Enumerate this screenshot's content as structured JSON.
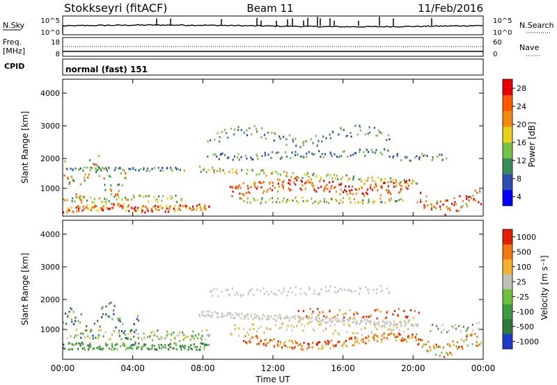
{
  "header": {
    "station": "Stokkseyri (fitACF)",
    "beam": "Beam 11",
    "date": "11/Feb/2016"
  },
  "strip_nsky": {
    "label": "N.Sky",
    "left_ticks": [
      "10^5",
      "10^0"
    ],
    "right_ticks": [
      "10^5",
      "10^0"
    ],
    "right_label": "N.Search"
  },
  "strip_freq": {
    "label_line1": "Freq.",
    "label_line2": "[MHz]",
    "left_ticks": [
      "18",
      "8"
    ],
    "right_ticks": [
      "60",
      "0"
    ],
    "right_label": "Nave"
  },
  "strip_cpid": {
    "label": "CPID",
    "text": "normal (fast) 151"
  },
  "power_panel": {
    "ylabel": "Slant Range [km]",
    "yticks": [
      "4000",
      "3000",
      "2000",
      "1000"
    ],
    "colorbar_label": "Power [dB]",
    "colorbar_ticks": [
      "28",
      "24",
      "20",
      "16",
      "12",
      "8",
      "4"
    ],
    "colors": [
      "#0000ff",
      "#3050b0",
      "#3a8a5a",
      "#77c14a",
      "#e8d020",
      "#f08a10",
      "#ff5a00",
      "#e80000"
    ]
  },
  "velocity_panel": {
    "ylabel": "Slant Range [km]",
    "yticks": [
      "4000",
      "3000",
      "2000",
      "1000"
    ],
    "colorbar_label": "Velocity [m s⁻¹]",
    "colorbar_ticks": [
      "1000",
      "500",
      "100",
      "25",
      "-25",
      "-100",
      "-500",
      "-1000"
    ],
    "colors": [
      "#1e3cc8",
      "#2f7a3a",
      "#3f9a40",
      "#6fc040",
      "#c0c0b8",
      "#f5b030",
      "#f07810",
      "#e02000"
    ],
    "ground_scatter_color": "#c8c8c0"
  },
  "xaxis": {
    "ticks": [
      "00:00",
      "04:00",
      "08:00",
      "12:00",
      "16:00",
      "20:00",
      "00:00"
    ],
    "label": "Time UT"
  }
}
